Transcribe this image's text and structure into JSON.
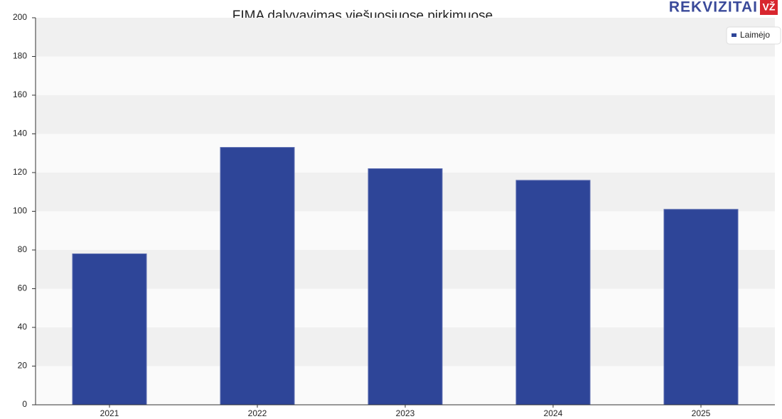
{
  "logo": {
    "text": "REKVIZITAI",
    "badge": "VŽ"
  },
  "chart_data": {
    "type": "bar",
    "title": "FIMA dalyvavimas viešuosiuose pirkimuose",
    "categories": [
      "2021",
      "2022",
      "2023",
      "2024",
      "2025"
    ],
    "series": [
      {
        "name": "Laimėjo",
        "color": "#2e4598",
        "values": [
          78,
          133,
          122,
          116,
          101
        ]
      }
    ],
    "ylim": [
      0,
      200
    ],
    "yticks": [
      0,
      20,
      40,
      60,
      80,
      100,
      120,
      140,
      160,
      180,
      200
    ],
    "grid": true,
    "legend": "top-right"
  }
}
